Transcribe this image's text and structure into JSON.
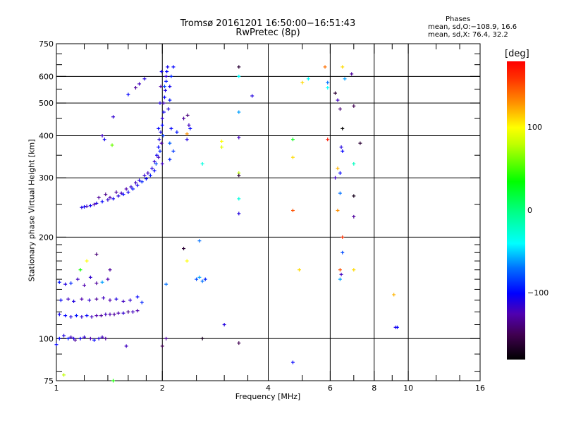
{
  "header": {
    "title": "Tromsø 20161201 16:50:00−16:51:43",
    "subtitle": "RwPretec (8p)"
  },
  "phases": {
    "label": "Phases",
    "o_line": "mean, sd,O:−108.9, 16.6",
    "x_line": "mean, sd,X:  76.4, 32.2"
  },
  "colorbar": {
    "label": "[deg]",
    "range": [
      -180,
      180
    ],
    "ticks": [
      {
        "value": 100,
        "label": "100"
      },
      {
        "value": 0,
        "label": "0"
      },
      {
        "value": -100,
        "label": "−100"
      }
    ],
    "stops": [
      [
        -180,
        "#000000"
      ],
      [
        -150,
        "#400050"
      ],
      [
        -125,
        "#5000b0"
      ],
      [
        -100,
        "#0000ff"
      ],
      [
        -70,
        "#0070ff"
      ],
      [
        -40,
        "#00ffff"
      ],
      [
        0,
        "#00ff80"
      ],
      [
        35,
        "#00ff00"
      ],
      [
        80,
        "#c0ff00"
      ],
      [
        100,
        "#ffff00"
      ],
      [
        130,
        "#ff9000"
      ],
      [
        160,
        "#ff3000"
      ],
      [
        180,
        "#ff0000"
      ]
    ]
  },
  "chart_data": {
    "type": "scatter",
    "title": "Tromsø 20161201 16:50:00-16:51:43",
    "xlabel": "Frequency [MHz]",
    "ylabel": "Stationary phase Virtual Height [km]",
    "xscale": "log",
    "yscale": "log",
    "xlim": [
      1,
      16
    ],
    "ylim": [
      75,
      750
    ],
    "grid": true,
    "xticks": [
      {
        "v": 1,
        "l": "1"
      },
      {
        "v": 2,
        "l": "2"
      },
      {
        "v": 4,
        "l": "4"
      },
      {
        "v": 6,
        "l": "6"
      },
      {
        "v": 8,
        "l": "8"
      },
      {
        "v": 10,
        "l": "10"
      },
      {
        "v": 16,
        "l": "16"
      }
    ],
    "yticks": [
      {
        "v": 75,
        "l": "75"
      },
      {
        "v": 100,
        "l": "100"
      },
      {
        "v": 200,
        "l": "200"
      },
      {
        "v": 300,
        "l": "300"
      },
      {
        "v": 400,
        "l": "400"
      },
      {
        "v": 500,
        "l": "500"
      },
      {
        "v": 600,
        "l": "600"
      },
      {
        "v": 750,
        "l": "750"
      }
    ],
    "xgrid": [
      2,
      4,
      6,
      8,
      10
    ],
    "ygrid": [
      100,
      200,
      300,
      400,
      500,
      600
    ],
    "point_fields": [
      "frequency_MHz",
      "height_km",
      "phase_deg"
    ],
    "points": [
      [
        1.18,
        245,
        -110
      ],
      [
        1.2,
        246,
        -100
      ],
      [
        1.22,
        247,
        -120
      ],
      [
        1.25,
        248,
        -105
      ],
      [
        1.28,
        250,
        -125
      ],
      [
        1.3,
        252,
        -110
      ],
      [
        1.32,
        262,
        -130
      ],
      [
        1.35,
        255,
        -100
      ],
      [
        1.38,
        268,
        -135
      ],
      [
        1.4,
        258,
        -115
      ],
      [
        1.42,
        262,
        -125
      ],
      [
        1.45,
        260,
        -105
      ],
      [
        1.48,
        272,
        -130
      ],
      [
        1.5,
        265,
        -110
      ],
      [
        1.53,
        270,
        -120
      ],
      [
        1.55,
        268,
        -100
      ],
      [
        1.58,
        278,
        -125
      ],
      [
        1.6,
        272,
        -105
      ],
      [
        1.63,
        282,
        -115
      ],
      [
        1.65,
        278,
        -95
      ],
      [
        1.68,
        290,
        -120
      ],
      [
        1.7,
        285,
        -105
      ],
      [
        1.72,
        295,
        -110
      ],
      [
        1.75,
        292,
        -90
      ],
      [
        1.78,
        305,
        -115
      ],
      [
        1.8,
        298,
        -100
      ],
      [
        1.82,
        310,
        -120
      ],
      [
        1.85,
        305,
        -95
      ],
      [
        1.87,
        320,
        -110
      ],
      [
        1.9,
        315,
        -100
      ],
      [
        1.9,
        335,
        -115
      ],
      [
        1.92,
        330,
        -80
      ],
      [
        1.93,
        350,
        -105
      ],
      [
        1.95,
        345,
        -120
      ],
      [
        1.95,
        370,
        -100
      ],
      [
        1.96,
        390,
        -110
      ],
      [
        1.97,
        360,
        -90
      ],
      [
        1.98,
        410,
        -105
      ],
      [
        1.99,
        380,
        -125
      ],
      [
        2.0,
        430,
        -100
      ],
      [
        2.0,
        450,
        -115
      ],
      [
        2.01,
        400,
        -85
      ],
      [
        2.02,
        470,
        -105
      ],
      [
        2.02,
        500,
        -120
      ],
      [
        2.03,
        520,
        -100
      ],
      [
        2.04,
        545,
        -110
      ],
      [
        2.05,
        580,
        -95
      ],
      [
        2.05,
        600,
        -115
      ],
      [
        2.06,
        620,
        -100
      ],
      [
        2.07,
        640,
        -105
      ],
      [
        2.03,
        560,
        -80
      ],
      [
        2.1,
        340,
        -90
      ],
      [
        2.1,
        380,
        -75
      ],
      [
        2.12,
        420,
        -100
      ],
      [
        2.15,
        360,
        -85
      ],
      [
        2.08,
        480,
        -110
      ],
      [
        2.1,
        510,
        -95
      ],
      [
        2.12,
        600,
        -90
      ],
      [
        2.15,
        640,
        -100
      ],
      [
        2.1,
        560,
        -105
      ],
      [
        2.0,
        330,
        -120
      ],
      [
        1.95,
        420,
        -100
      ],
      [
        1.97,
        500,
        -110
      ],
      [
        1.98,
        560,
        -125
      ],
      [
        1.99,
        620,
        -105
      ],
      [
        2.2,
        410,
        -95
      ],
      [
        2.3,
        450,
        -130
      ],
      [
        2.35,
        390,
        -110
      ],
      [
        2.38,
        430,
        -120
      ],
      [
        2.4,
        420,
        -100
      ],
      [
        2.36,
        460,
        -140
      ],
      [
        2.35,
        405,
        130
      ],
      [
        1.78,
        590,
        -110
      ],
      [
        1.72,
        570,
        -120
      ],
      [
        1.6,
        530,
        -100
      ],
      [
        1.68,
        555,
        -130
      ],
      [
        1.45,
        455,
        -115
      ],
      [
        1.35,
        400,
        -120
      ],
      [
        1.37,
        390,
        -105
      ],
      [
        1.44,
        375,
        60
      ],
      [
        1.02,
        100,
        -100
      ],
      [
        1.05,
        102,
        -110
      ],
      [
        1.08,
        100,
        -95
      ],
      [
        1.1,
        101,
        -120
      ],
      [
        1.13,
        99,
        -130
      ],
      [
        1.17,
        100,
        -105
      ],
      [
        1.2,
        101,
        -115
      ],
      [
        1.25,
        100,
        -125
      ],
      [
        1.28,
        99,
        -100
      ],
      [
        1.32,
        100,
        -110
      ],
      [
        1.35,
        101,
        -120
      ],
      [
        1.38,
        100,
        -130
      ],
      [
        1.0,
        96,
        -100
      ],
      [
        1.12,
        100,
        -110
      ],
      [
        1.02,
        118,
        -105
      ],
      [
        1.06,
        117,
        -100
      ],
      [
        1.1,
        116,
        -110
      ],
      [
        1.14,
        117,
        -95
      ],
      [
        1.18,
        116,
        -115
      ],
      [
        1.22,
        117,
        -100
      ],
      [
        1.26,
        116,
        -120
      ],
      [
        1.3,
        117,
        -125
      ],
      [
        1.34,
        117,
        -130
      ],
      [
        1.38,
        118,
        -120
      ],
      [
        1.42,
        118,
        -125
      ],
      [
        1.46,
        118,
        -130
      ],
      [
        1.5,
        119,
        -125
      ],
      [
        1.55,
        119,
        -115
      ],
      [
        1.6,
        120,
        -135
      ],
      [
        1.65,
        120,
        -120
      ],
      [
        1.7,
        121,
        -125
      ],
      [
        1.03,
        130,
        -100
      ],
      [
        1.08,
        131,
        -120
      ],
      [
        1.12,
        129,
        -110
      ],
      [
        1.18,
        131,
        -125
      ],
      [
        1.24,
        130,
        -115
      ],
      [
        1.3,
        131,
        -130
      ],
      [
        1.36,
        132,
        -120
      ],
      [
        1.42,
        130,
        -125
      ],
      [
        1.48,
        131,
        -110
      ],
      [
        1.55,
        129,
        -120
      ],
      [
        1.62,
        130,
        -115
      ],
      [
        1.7,
        133,
        -100
      ],
      [
        1.75,
        128,
        -90
      ],
      [
        1.02,
        147,
        -95
      ],
      [
        1.06,
        145,
        -110
      ],
      [
        1.1,
        146,
        -90
      ],
      [
        1.15,
        150,
        -120
      ],
      [
        1.2,
        144,
        -125
      ],
      [
        1.25,
        152,
        -115
      ],
      [
        1.3,
        146,
        -130
      ],
      [
        1.35,
        147,
        -60
      ],
      [
        1.4,
        150,
        -125
      ],
      [
        1.42,
        160,
        -130
      ],
      [
        1.17,
        160,
        40
      ],
      [
        1.22,
        170,
        100
      ],
      [
        1.3,
        178,
        -140
      ],
      [
        1.58,
        95,
        -120
      ],
      [
        2.3,
        185,
        -160
      ],
      [
        2.35,
        170,
        100
      ],
      [
        2.05,
        145,
        -70
      ],
      [
        2.5,
        150,
        -80
      ],
      [
        2.55,
        152,
        -60
      ],
      [
        2.6,
        148,
        -70
      ],
      [
        2.65,
        150,
        -90
      ],
      [
        2.55,
        195,
        -70
      ],
      [
        2.05,
        100,
        -130
      ],
      [
        2.0,
        95,
        -150
      ],
      [
        2.6,
        100,
        -170
      ],
      [
        3.0,
        110,
        -110
      ],
      [
        3.3,
        97,
        -150
      ],
      [
        1.05,
        78,
        80
      ],
      [
        1.45,
        75,
        40
      ],
      [
        3.3,
        640,
        -160
      ],
      [
        3.3,
        600,
        -40
      ],
      [
        3.3,
        470,
        -60
      ],
      [
        3.3,
        395,
        -120
      ],
      [
        3.3,
        310,
        80
      ],
      [
        3.3,
        305,
        -160
      ],
      [
        3.3,
        260,
        -30
      ],
      [
        3.3,
        235,
        -110
      ],
      [
        2.95,
        385,
        100
      ],
      [
        2.95,
        370,
        90
      ],
      [
        2.6,
        330,
        -30
      ],
      [
        3.6,
        525,
        -110
      ],
      [
        4.7,
        390,
        30
      ],
      [
        4.7,
        345,
        110
      ],
      [
        4.7,
        240,
        150
      ],
      [
        4.7,
        85,
        -100
      ],
      [
        4.9,
        160,
        110
      ],
      [
        5.2,
        590,
        -40
      ],
      [
        5.0,
        575,
        110
      ],
      [
        5.8,
        640,
        140
      ],
      [
        5.9,
        575,
        -70
      ],
      [
        5.9,
        555,
        -40
      ],
      [
        5.9,
        390,
        170
      ],
      [
        6.2,
        535,
        -160
      ],
      [
        6.3,
        510,
        -120
      ],
      [
        6.4,
        480,
        -140
      ],
      [
        6.5,
        420,
        -180
      ],
      [
        6.45,
        370,
        -110
      ],
      [
        6.5,
        360,
        -100
      ],
      [
        6.3,
        320,
        120
      ],
      [
        6.4,
        310,
        -100
      ],
      [
        6.2,
        300,
        -120
      ],
      [
        6.4,
        270,
        -70
      ],
      [
        6.3,
        240,
        130
      ],
      [
        6.5,
        200,
        160
      ],
      [
        6.5,
        180,
        -80
      ],
      [
        6.4,
        160,
        150
      ],
      [
        6.45,
        155,
        -120
      ],
      [
        6.4,
        150,
        -60
      ],
      [
        6.5,
        640,
        110
      ],
      [
        6.6,
        590,
        -60
      ],
      [
        6.9,
        610,
        -130
      ],
      [
        7.0,
        490,
        -150
      ],
      [
        7.3,
        380,
        -160
      ],
      [
        7.0,
        330,
        -20
      ],
      [
        7.0,
        265,
        -170
      ],
      [
        7.0,
        230,
        -130
      ],
      [
        7.0,
        160,
        110
      ],
      [
        9.2,
        108,
        -110
      ],
      [
        9.3,
        108,
        -100
      ],
      [
        9.1,
        135,
        120
      ]
    ]
  }
}
